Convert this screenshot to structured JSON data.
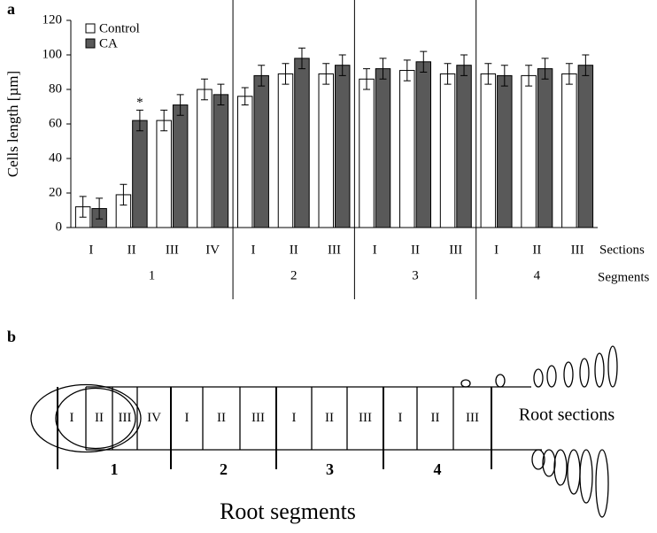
{
  "chart_data": {
    "type": "bar",
    "panel_label": "a",
    "y_label": "Cells length [µm]",
    "x_row_labels": [
      "Sections",
      "Segments"
    ],
    "groups": [
      {
        "label": "1",
        "sections": [
          "I",
          "II",
          "III",
          "IV"
        ]
      },
      {
        "label": "2",
        "sections": [
          "I",
          "II",
          "III"
        ]
      },
      {
        "label": "3",
        "sections": [
          "I",
          "II",
          "III"
        ]
      },
      {
        "label": "4",
        "sections": [
          "I",
          "II",
          "III"
        ]
      }
    ],
    "series": [
      {
        "name": "Control",
        "color": "#ffffff",
        "values": [
          12,
          19,
          62,
          80,
          76,
          89,
          89,
          86,
          91,
          89,
          89,
          88,
          89
        ],
        "errors": [
          6,
          6,
          6,
          6,
          5,
          6,
          6,
          6,
          6,
          6,
          6,
          6,
          6
        ]
      },
      {
        "name": "CA",
        "color": "#595959",
        "values": [
          11,
          62,
          71,
          77,
          88,
          98,
          94,
          92,
          96,
          94,
          88,
          92,
          94
        ],
        "errors": [
          6,
          6,
          6,
          6,
          6,
          6,
          6,
          6,
          6,
          6,
          6,
          6,
          6
        ]
      }
    ],
    "annotation": "*",
    "ylim": [
      0,
      120
    ],
    "yticks": [
      0,
      20,
      40,
      60,
      80,
      100,
      120
    ],
    "grid": false,
    "legend": "top-left"
  },
  "diagram": {
    "panel_label": "b",
    "segments": [
      {
        "label": "1",
        "cells": [
          "I",
          "II",
          "III",
          "IV"
        ]
      },
      {
        "label": "2",
        "cells": [
          "I",
          "II",
          "III"
        ]
      },
      {
        "label": "3",
        "cells": [
          "I",
          "II",
          "III"
        ]
      },
      {
        "label": "4",
        "cells": [
          "I",
          "II",
          "III"
        ]
      }
    ],
    "sections_label": "Root sections",
    "segments_label": "Root segments"
  }
}
